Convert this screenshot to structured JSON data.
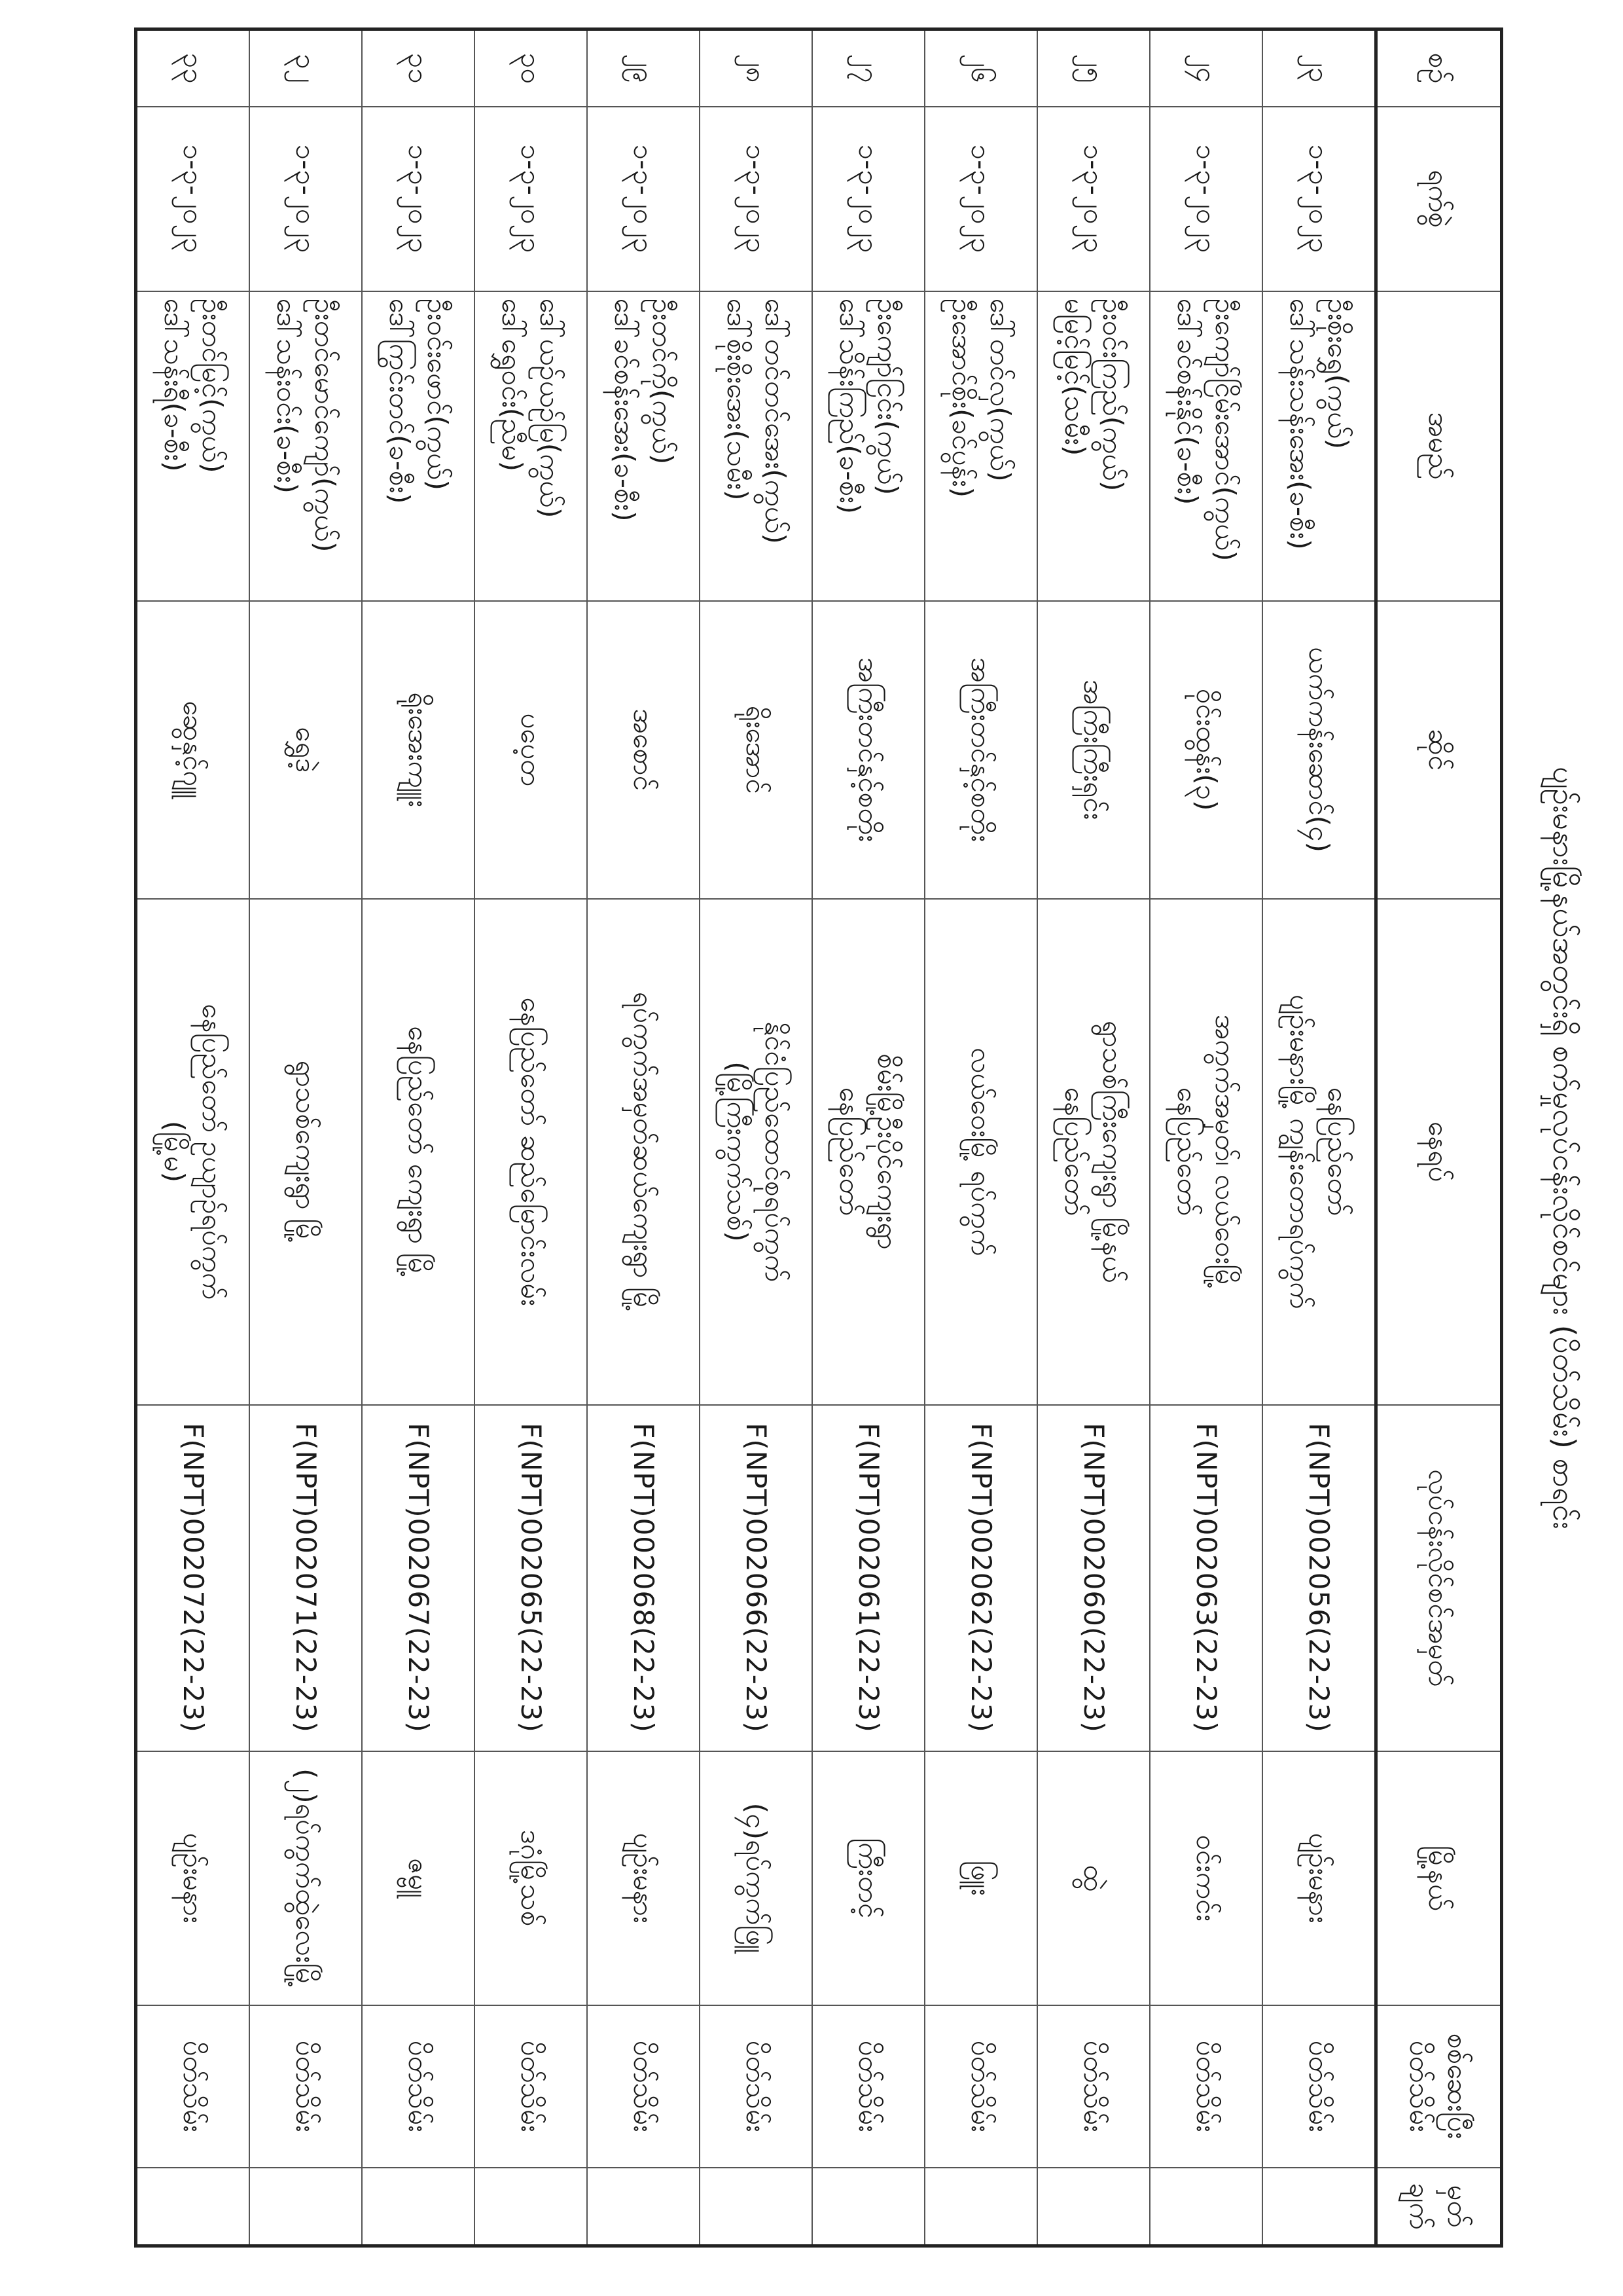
{
  "title": "ပျဉ်းမနားမြို့နယ်အတွင်းရှိ စက်မှုလုပ်ငန်းလိုင်စင်များ (ပိတ်သိမ်း) စာရင်း",
  "headers": {
    "no": "စဉ်",
    "date": "ရက်စွဲ",
    "name": "အမည်",
    "shop": "ဆိုင်",
    "address": "နေရပ်",
    "license": "လုပ်ငန်းလိုင်စင်အမှတ်",
    "township": "မြို့နယ်",
    "status": [
      "စစ်ဆေးပြီး",
      "ပိတ်သိမ်း"
    ],
    "remarks": [
      "မှတ်",
      "ချက်"
    ]
  },
  "rows": [
    {
      "no": "၂၃",
      "date": "၁-၃-၂၀၂၃",
      "name": [
        "ဦးစိုးရွှေ(ကွယ်)",
        "ဒေါ်သန်းသန်းအေး(ခ-စီး)"
      ],
      "shop": "ယက်ကန်းဆောင်(၄)",
      "address": [
        "နေပြည်တော်",
        "ပျဉ်းမနားမြို့ ကျွန်းတောရပ်ကွက်"
      ],
      "license": "F(NPT)002056(22-23)",
      "township": "ပျဉ်းမနား",
      "status": "ပိတ်သိမ်း",
      "remarks": ""
    },
    {
      "no": "၂၄",
      "date": "၁-၃-၂၀၂၃",
      "name": [
        "ဦးကျော်ငြိမ်းအောင်(ကွယ်)",
        "ဒေါ်ခင်စန်းနိုင်(ခ-စီး)"
      ],
      "shop": "ဝိုင်းထွန်း(၃)",
      "address": [
        "အကွက်အမှတ်၊ လယ်ဝေးမြို့",
        "နေပြည်တော်"
      ],
      "license": "F(NPT)002063(22-23)",
      "township": "ဝင်းကင်း",
      "status": "ပိတ်သိမ်း",
      "remarks": ""
    },
    {
      "no": "၂၅",
      "date": "၁-၃-၂၀၂၃",
      "name": [
        "ဦးဝင်းကြည်(ကွယ်)",
        "မမြင့်မြင့်(သမီး)"
      ],
      "shop": "အကြီးကြီးရှင်း",
      "address": [
        "ရွာသစ်ကြီးကျေးရွာ မြို့နယ်",
        "နေပြည်တော်"
      ],
      "license": "F(NPT)002060(22-23)",
      "township": "ထွဲ",
      "status": "ပိတ်သိမ်း",
      "remarks": ""
    },
    {
      "no": "၂၆",
      "date": "၁-၃-၂၀၂၃",
      "name": [
        "ဒေါ်တင်လှ(ကွယ်)",
        "ဦးအောင်စိုး(ခင်ပွန်း)"
      ],
      "shop": "အကြီးတင်နှင့်စတိုး",
      "address": [
        "လယ်ဝေးမြို့ ရပ်ကွက်"
      ],
      "license": "F(NPT)002062(22-23)",
      "township": "ဖြူး",
      "status": "ပိတ်သိမ်း",
      "remarks": ""
    },
    {
      "no": "၂၇",
      "date": "၁-၃-၂၀၂၃",
      "name": [
        "ဦးကျော်ငြင်း(ကွယ်)",
        "ဒေါ်သိန်းကြည်(ခ-စီး)"
      ],
      "shop": "အကြီးတင်နှင့်စတိုး",
      "address": [
        "စိမ်းမြို့ဦးပိုင်ကျေးရွာ",
        "နေပြည်တော်"
      ],
      "license": "F(NPT)002061(22-23)",
      "township": "ကြီးတင့်",
      "status": "ပိတ်သိမ်း",
      "remarks": ""
    },
    {
      "no": "၂၈",
      "date": "၁-၃-၂၀၂၃",
      "name": [
        "ဒေါ်တင်တင်အေး(ကွယ်)",
        "ဒေါ်စိုးစိုးအေး(သမီး)"
      ],
      "shop": "ရိုးအောင်",
      "address": [
        "နိုင်ငံပြည်ထောင်စုရပ်ကွက်",
        "(မြို့ကြီးကွက်သစ်)"
      ],
      "license": "F(NPT)002066(22-23)",
      "township": "(၄)ရပ်ကွက်ဖြူ",
      "status": "ပိတ်သိမ်း",
      "remarks": ""
    },
    {
      "no": "၂၉",
      "date": "၁-၃-၂၀၂၃",
      "name": [
        "ဦးတင်ကို(ကွယ်)",
        "ဒေါ်ခင်စန်းအေး(ခ-စီး)"
      ],
      "shop": "အစောင်",
      "address": [
        "ရပ်ကွက်အမှတ်ဆယ်ကျေးရွာ မြို့"
      ],
      "license": "F(NPT)002068(22-23)",
      "township": "ပျဉ်းမနား",
      "status": "ပိတ်သိမ်း",
      "remarks": ""
    },
    {
      "no": "၃၀",
      "date": "၁-၃-၂၀၂၃",
      "name": [
        "ဒေါ်ယဉ်ယဉ်မြ(ကွယ်)",
        "ဒေါ်ရွှေဝင်း(ညီမ)"
      ],
      "shop": "ပပေ့တ",
      "address": [
        "နေပြည်တော် ဆည်မြောင်းလမ်း"
      ],
      "license": "F(NPT)002065(22-23)",
      "township": "ဒဂုံမြို့သစ်",
      "status": "ပိတ်သိမ်း",
      "remarks": ""
    },
    {
      "no": "၃၁",
      "date": "၁-၃-၂၀၂၃",
      "name": [
        "ဦးဝင်းဖောင်(ကွယ်)",
        "ဒေါ်ကြွင်းတင်(ခ-စီး)"
      ],
      "shop": "ရိုးအေးကျူး",
      "address": [
        "နေပြည်တော် ကျေးရွာ မြို့"
      ],
      "license": "F(NPT)002067(22-23)",
      "township": "ဇမ္ဗူ",
      "status": "ပိတ်သိမ်း",
      "remarks": ""
    },
    {
      "no": "၃၂",
      "date": "၁-၃-၂၀၂၃",
      "name": [
        "ဦးတင်မောင်ကျော်(ကွယ်)",
        "ဒေါ်သန်းဝင်း(ခ-စီး)"
      ],
      "shop": "ရွှေဒဲ့",
      "address": [
        "ရွာသစ်ကျေးရွာ မြို့"
      ],
      "license": "F(NPT)002071(22-23)",
      "township": "(၂)ရပ်ကွက်ထွဲလေးမြို့",
      "status": "ပိတ်သိမ်း",
      "remarks": ""
    },
    {
      "no": "၃၃",
      "date": "၁-၃-၂၀၂၃",
      "name": [
        "ဦးတင်မြင့်(ကွယ်)",
        "ဒေါ်သန်းရီ(ခ-စီး)"
      ],
      "shop": "ဆွေနှင့်ဂျူ",
      "address": [
        "နေပြည်တော် ဥယျာဉ်ရပ်ကွက်",
        "(မြို့မ)"
      ],
      "license": "F(NPT)002072(22-23)",
      "township": "ပျဉ်းမနား",
      "status": "ပိတ်သိမ်း",
      "remarks": ""
    }
  ]
}
